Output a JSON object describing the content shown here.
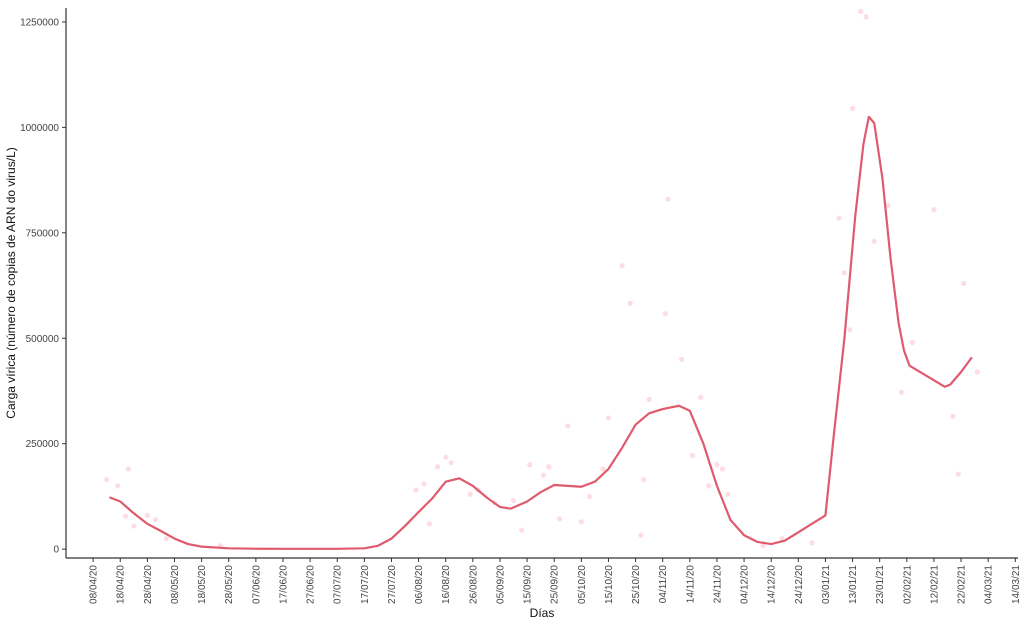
{
  "chart_data": {
    "type": "line",
    "x_label": "Días",
    "y_label": "Carga vírica (número de copias de ARN do virus/L)",
    "xlim": [
      "2020-03-29",
      "2021-03-15"
    ],
    "ylim": [
      -21000,
      1283000
    ],
    "yticks": [
      0,
      250000,
      500000,
      750000,
      1000000,
      1250000
    ],
    "xticks": [
      {
        "value": "2020-04-08",
        "label": "08/04/20"
      },
      {
        "value": "2020-04-18",
        "label": "18/04/20"
      },
      {
        "value": "2020-04-28",
        "label": "28/04/20"
      },
      {
        "value": "2020-05-08",
        "label": "08/05/20"
      },
      {
        "value": "2020-05-18",
        "label": "18/05/20"
      },
      {
        "value": "2020-05-28",
        "label": "28/05/20"
      },
      {
        "value": "2020-06-07",
        "label": "07/06/20"
      },
      {
        "value": "2020-06-17",
        "label": "17/06/20"
      },
      {
        "value": "2020-06-27",
        "label": "27/06/20"
      },
      {
        "value": "2020-07-07",
        "label": "07/07/20"
      },
      {
        "value": "2020-07-17",
        "label": "17/07/20"
      },
      {
        "value": "2020-07-27",
        "label": "27/07/20"
      },
      {
        "value": "2020-08-06",
        "label": "06/08/20"
      },
      {
        "value": "2020-08-16",
        "label": "16/08/20"
      },
      {
        "value": "2020-08-26",
        "label": "26/08/20"
      },
      {
        "value": "2020-09-05",
        "label": "05/09/20"
      },
      {
        "value": "2020-09-15",
        "label": "15/09/20"
      },
      {
        "value": "2020-09-25",
        "label": "25/09/20"
      },
      {
        "value": "2020-10-05",
        "label": "05/10/20"
      },
      {
        "value": "2020-10-15",
        "label": "15/10/20"
      },
      {
        "value": "2020-10-25",
        "label": "25/10/20"
      },
      {
        "value": "2020-11-04",
        "label": "04/11/20"
      },
      {
        "value": "2020-11-14",
        "label": "14/11/20"
      },
      {
        "value": "2020-11-24",
        "label": "24/11/20"
      },
      {
        "value": "2020-12-04",
        "label": "04/12/20"
      },
      {
        "value": "2020-12-14",
        "label": "14/12/20"
      },
      {
        "value": "2020-12-24",
        "label": "24/12/20"
      },
      {
        "value": "2021-01-03",
        "label": "03/01/21"
      },
      {
        "value": "2021-01-13",
        "label": "13/01/21"
      },
      {
        "value": "2021-01-23",
        "label": "23/01/21"
      },
      {
        "value": "2021-02-02",
        "label": "02/02/21"
      },
      {
        "value": "2021-02-12",
        "label": "12/02/21"
      },
      {
        "value": "2021-02-22",
        "label": "22/02/21"
      },
      {
        "value": "2021-03-04",
        "label": "04/03/21"
      },
      {
        "value": "2021-03-14",
        "label": "14/03/21"
      }
    ],
    "points": {
      "color": "#fbdde2",
      "x": [
        "2020-04-13",
        "2020-04-17",
        "2020-04-20",
        "2020-04-21",
        "2020-04-23",
        "2020-04-28",
        "2020-05-01",
        "2020-05-05",
        "2020-05-25",
        "2020-08-05",
        "2020-08-08",
        "2020-08-10",
        "2020-08-13",
        "2020-08-16",
        "2020-08-18",
        "2020-08-25",
        "2020-08-28",
        "2020-09-03",
        "2020-09-10",
        "2020-09-13",
        "2020-09-16",
        "2020-09-21",
        "2020-09-23",
        "2020-09-27",
        "2020-09-30",
        "2020-10-05",
        "2020-10-08",
        "2020-10-13",
        "2020-10-15",
        "2020-10-20",
        "2020-10-23",
        "2020-10-27",
        "2020-10-28",
        "2020-10-30",
        "2020-11-05",
        "2020-11-06",
        "2020-11-11",
        "2020-11-15",
        "2020-11-18",
        "2020-11-21",
        "2020-11-24",
        "2020-11-26",
        "2020-11-28",
        "2020-12-11",
        "2020-12-18",
        "2020-12-29",
        "2021-01-08",
        "2021-01-10",
        "2021-01-12",
        "2021-01-13",
        "2021-01-16",
        "2021-01-18",
        "2021-01-21",
        "2021-01-26",
        "2021-01-31",
        "2021-02-04",
        "2021-02-12",
        "2021-02-19",
        "2021-02-21",
        "2021-02-23",
        "2021-02-28"
      ],
      "values": [
        165000,
        150000,
        78000,
        190000,
        55000,
        80000,
        70000,
        25000,
        8000,
        140000,
        155000,
        60000,
        195000,
        218000,
        205000,
        130000,
        140000,
        110000,
        115000,
        45000,
        200000,
        175000,
        195000,
        72000,
        292000,
        65000,
        125000,
        190000,
        311000,
        672000,
        583000,
        33000,
        165000,
        355000,
        558000,
        830000,
        450000,
        222000,
        360000,
        150000,
        200000,
        190000,
        130000,
        8000,
        25000,
        15000,
        785000,
        655000,
        520000,
        1045000,
        1275000,
        1262000,
        730000,
        815000,
        372000,
        490000,
        805000,
        315000,
        178000,
        630000,
        420000
      ]
    },
    "line": {
      "color": "#e05a6e",
      "x": [
        "2020-04-14",
        "2020-04-18",
        "2020-04-23",
        "2020-04-28",
        "2020-05-03",
        "2020-05-08",
        "2020-05-13",
        "2020-05-18",
        "2020-05-28",
        "2020-06-07",
        "2020-06-17",
        "2020-06-27",
        "2020-07-07",
        "2020-07-17",
        "2020-07-22",
        "2020-07-27",
        "2020-08-01",
        "2020-08-06",
        "2020-08-11",
        "2020-08-16",
        "2020-08-21",
        "2020-08-26",
        "2020-08-31",
        "2020-09-05",
        "2020-09-09",
        "2020-09-15",
        "2020-09-20",
        "2020-09-25",
        "2020-09-30",
        "2020-10-05",
        "2020-10-10",
        "2020-10-15",
        "2020-10-20",
        "2020-10-25",
        "2020-10-30",
        "2020-11-04",
        "2020-11-10",
        "2020-11-14",
        "2020-11-19",
        "2020-11-24",
        "2020-11-29",
        "2020-12-04",
        "2020-12-09",
        "2020-12-14",
        "2020-12-19",
        "2020-12-24",
        "2020-12-29",
        "2021-01-03",
        "2021-01-06",
        "2021-01-10",
        "2021-01-14",
        "2021-01-17",
        "2021-01-19",
        "2021-01-21",
        "2021-01-24",
        "2021-01-27",
        "2021-01-30",
        "2021-02-01",
        "2021-02-03",
        "2021-02-16",
        "2021-02-18",
        "2021-02-22",
        "2021-02-26"
      ],
      "values": [
        123000,
        113000,
        85000,
        60000,
        43000,
        25000,
        12000,
        6000,
        2000,
        1000,
        800,
        800,
        800,
        2000,
        8000,
        25000,
        55000,
        88000,
        120000,
        160000,
        168000,
        150000,
        123000,
        100000,
        96000,
        113000,
        135000,
        152000,
        150000,
        148000,
        160000,
        190000,
        240000,
        295000,
        322000,
        332000,
        340000,
        328000,
        250000,
        150000,
        69000,
        33000,
        17000,
        12000,
        20000,
        40000,
        60000,
        80000,
        265000,
        500000,
        790000,
        960000,
        1025000,
        1010000,
        880000,
        690000,
        535000,
        470000,
        435000,
        385000,
        390000,
        420000,
        455000
      ]
    }
  }
}
